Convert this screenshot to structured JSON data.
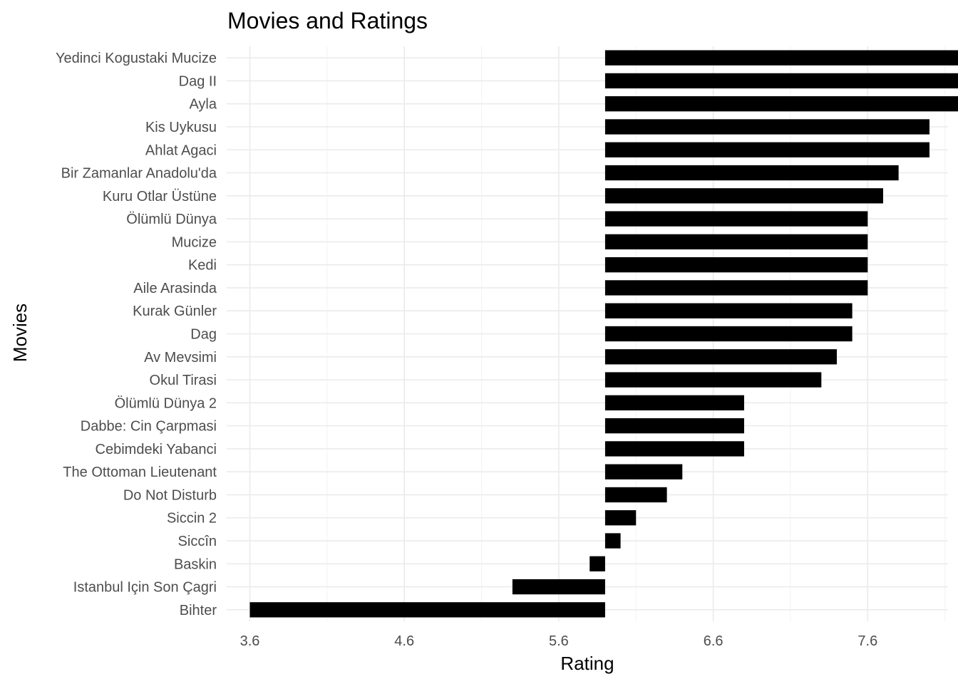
{
  "chart_data": {
    "type": "bar",
    "orientation": "horizontal",
    "title": "Movies and Ratings",
    "xlabel": "Rating",
    "ylabel": "Movies",
    "baseline": 5.9,
    "xlim": [
      3.45,
      8.12
    ],
    "xticks": [
      3.6,
      4.6,
      5.6,
      6.6,
      7.6
    ],
    "xtick_labels": [
      "3.6",
      "4.6",
      "5.6",
      "6.6",
      "7.6"
    ],
    "grid": true,
    "legend": "none",
    "bar_color": "#000000",
    "categories": [
      "Yedinci Kogustaki Mucize",
      "Dag II",
      "Ayla",
      "Kis Uykusu",
      "Ahlat Agaci",
      "Bir Zamanlar Anadolu'da",
      "Kuru Otlar Üstüne",
      "Ölümlü Dünya",
      "Mucize",
      "Kedi",
      "Aile Arasinda",
      "Kurak Günler",
      "Dag",
      "Av Mevsimi",
      "Okul Tirasi",
      "Ölümlü Dünya 2",
      "Dabbe: Cin Çarpmasi",
      "Cebimdeki Yabanci",
      "The Ottoman Lieutenant",
      "Do Not Disturb",
      "Siccin 2",
      "Siccîn",
      "Baskin",
      "Istanbul Için Son Çagri",
      "Bihter"
    ],
    "values": [
      8.2,
      8.2,
      8.2,
      8.0,
      8.0,
      7.8,
      7.7,
      7.6,
      7.6,
      7.6,
      7.6,
      7.5,
      7.5,
      7.4,
      7.3,
      6.8,
      6.8,
      6.8,
      6.4,
      6.3,
      6.1,
      6.0,
      5.8,
      5.3,
      3.6
    ]
  }
}
